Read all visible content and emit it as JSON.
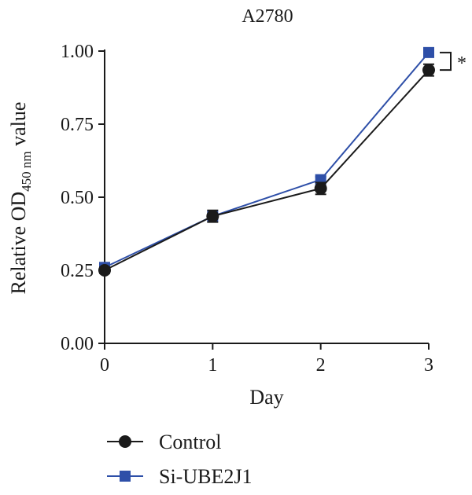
{
  "chart_data": {
    "type": "line",
    "title": "A2780",
    "xlabel": "Day",
    "ylabel_main": "Relative OD",
    "ylabel_sub": "450 nm",
    "ylabel_tail": " value",
    "x": [
      0,
      1,
      2,
      3
    ],
    "x_ticks": [
      "0",
      "1",
      "2",
      "3"
    ],
    "y_ticks": [
      "0.00",
      "0.25",
      "0.50",
      "0.75",
      "1.00"
    ],
    "xlim": [
      0,
      3
    ],
    "ylim": [
      0,
      1
    ],
    "grid": false,
    "legend_position": "bottom-left",
    "series": [
      {
        "name": "Control",
        "marker": "circle",
        "color": "#1a1a1a",
        "values": [
          0.25,
          0.435,
          0.53,
          0.935
        ],
        "errors": [
          0.01,
          0.02,
          0.02,
          0.02
        ]
      },
      {
        "name": "Si-UBE2J1",
        "marker": "square",
        "color": "#2e4fa8",
        "values": [
          0.26,
          0.435,
          0.56,
          0.995
        ],
        "errors": [
          0.005,
          0.01,
          0.01,
          0.005
        ]
      }
    ],
    "annotations": [
      {
        "text": "*",
        "x": 3,
        "y_from": 0.935,
        "y_to": 0.995
      }
    ]
  }
}
